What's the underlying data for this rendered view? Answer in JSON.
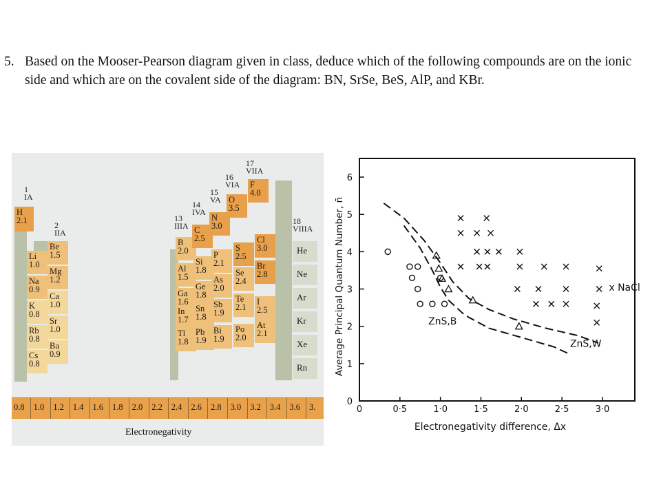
{
  "question": {
    "number": "5.",
    "text": "Based on the Mooser-Pearson diagram given in class, deduce which of the following compounds are on the ionic side and which are on the covalent side of the diagram: BN, SrSe, BeS, AlP, and KBr."
  },
  "periodic_table": {
    "groups": [
      {
        "num": "1",
        "name": "IA"
      },
      {
        "num": "2",
        "name": "IIA"
      },
      {
        "num": "13",
        "name": "IIIA"
      },
      {
        "num": "14",
        "name": "IVA"
      },
      {
        "num": "15",
        "name": "VA"
      },
      {
        "num": "16",
        "name": "VIA"
      },
      {
        "num": "17",
        "name": "VIIA"
      },
      {
        "num": "18",
        "name": "VIIIA"
      }
    ],
    "elements": [
      {
        "sym": "H",
        "en": "2.1"
      },
      {
        "sym": "Li",
        "en": "1.0"
      },
      {
        "sym": "Be",
        "en": "1.5"
      },
      {
        "sym": "Na",
        "en": "0.9"
      },
      {
        "sym": "Mg",
        "en": "1.2"
      },
      {
        "sym": "K",
        "en": "0.8"
      },
      {
        "sym": "Ca",
        "en": "1.0"
      },
      {
        "sym": "Rb",
        "en": "0.8"
      },
      {
        "sym": "Sr",
        "en": "1.0"
      },
      {
        "sym": "Cs",
        "en": "0.8"
      },
      {
        "sym": "Ba",
        "en": "0.9"
      },
      {
        "sym": "B",
        "en": "2.0"
      },
      {
        "sym": "C",
        "en": "2.5"
      },
      {
        "sym": "N",
        "en": "3.0"
      },
      {
        "sym": "O",
        "en": "3.5"
      },
      {
        "sym": "F",
        "en": "4.0"
      },
      {
        "sym": "Al",
        "en": "1.5"
      },
      {
        "sym": "Si",
        "en": "1.8"
      },
      {
        "sym": "P",
        "en": "2.1"
      },
      {
        "sym": "S",
        "en": "2.5"
      },
      {
        "sym": "Cl",
        "en": "3.0"
      },
      {
        "sym": "Ga",
        "en": "1.6"
      },
      {
        "sym": "Ge",
        "en": "1.8"
      },
      {
        "sym": "As",
        "en": "2.0"
      },
      {
        "sym": "Se",
        "en": "2.4"
      },
      {
        "sym": "Br",
        "en": "2.8"
      },
      {
        "sym": "In",
        "en": "1.7"
      },
      {
        "sym": "Sn",
        "en": "1.8"
      },
      {
        "sym": "Sb",
        "en": "1.9"
      },
      {
        "sym": "Te",
        "en": "2.1"
      },
      {
        "sym": "I",
        "en": "2.5"
      },
      {
        "sym": "Tl",
        "en": "1.8"
      },
      {
        "sym": "Pb",
        "en": "1.9"
      },
      {
        "sym": "Bi",
        "en": "1.9"
      },
      {
        "sym": "Po",
        "en": "2.0"
      },
      {
        "sym": "At",
        "en": "2.1"
      }
    ],
    "noble": [
      "He",
      "Ne",
      "Ar",
      "Kr",
      "Xe",
      "Rn"
    ],
    "scale": [
      "0.8",
      "1.0",
      "1.2",
      "1.4",
      "1.6",
      "1.8",
      "2.0",
      "2.2",
      "2.4",
      "2.6",
      "2.8",
      "3.0",
      "3.2",
      "3.4",
      "3.6",
      "3."
    ],
    "scale_label": "Electronegativity"
  },
  "chart_data": {
    "type": "scatter",
    "xlabel": "Electronegativity  difference,  Δx",
    "ylabel": "Average  Principal  Quantum  Number,  n̄",
    "xlim": [
      0,
      3.4
    ],
    "ylim": [
      0,
      6.5
    ],
    "xticks": [
      "0",
      "0·5",
      "1·0",
      "1·5",
      "2·0",
      "2·5",
      "3·0"
    ],
    "xtick_values": [
      0,
      0.5,
      1.0,
      1.5,
      2.0,
      2.5,
      3.0
    ],
    "yticks": [
      "0",
      "1",
      "2",
      "3",
      "4",
      "5",
      "6"
    ],
    "ytick_values": [
      0,
      1,
      2,
      3,
      4,
      5,
      6
    ],
    "series": [
      {
        "marker": "o",
        "points": [
          [
            0.35,
            4.0
          ],
          [
            0.62,
            3.6
          ],
          [
            0.72,
            3.6
          ],
          [
            0.65,
            3.3
          ],
          [
            0.72,
            3.0
          ],
          [
            0.75,
            2.6
          ],
          [
            0.9,
            2.6
          ],
          [
            1.05,
            2.6
          ],
          [
            1.0,
            3.3
          ]
        ]
      },
      {
        "marker": "x",
        "points": [
          [
            1.25,
            4.9
          ],
          [
            1.57,
            4.9
          ],
          [
            1.25,
            4.5
          ],
          [
            1.45,
            4.5
          ],
          [
            1.62,
            4.5
          ],
          [
            1.45,
            4.0
          ],
          [
            1.58,
            4.0
          ],
          [
            1.72,
            4.0
          ],
          [
            1.98,
            4.0
          ],
          [
            1.25,
            3.6
          ],
          [
            1.48,
            3.6
          ],
          [
            1.58,
            3.6
          ],
          [
            1.98,
            3.6
          ],
          [
            2.28,
            3.6
          ],
          [
            2.55,
            3.6
          ],
          [
            2.96,
            3.55
          ],
          [
            1.95,
            3.0
          ],
          [
            2.21,
            3.0
          ],
          [
            2.55,
            3.0
          ],
          [
            2.96,
            3.0
          ],
          [
            2.18,
            2.6
          ],
          [
            2.37,
            2.6
          ],
          [
            2.55,
            2.6
          ],
          [
            2.93,
            2.55
          ],
          [
            2.93,
            2.1
          ]
        ]
      },
      {
        "marker": "triangle",
        "points": [
          [
            0.95,
            3.9
          ],
          [
            0.98,
            3.55
          ],
          [
            1.02,
            3.28
          ],
          [
            1.1,
            3.0
          ],
          [
            1.4,
            2.7
          ],
          [
            1.97,
            2.0
          ]
        ]
      }
    ],
    "curves": [
      {
        "style": "dashed",
        "points": [
          [
            0.3,
            5.3
          ],
          [
            0.55,
            4.9
          ],
          [
            0.8,
            4.3
          ],
          [
            1.0,
            3.7
          ],
          [
            1.15,
            3.2
          ],
          [
            1.35,
            2.75
          ],
          [
            1.6,
            2.45
          ],
          [
            1.9,
            2.2
          ],
          [
            2.3,
            1.95
          ],
          [
            2.7,
            1.75
          ],
          [
            2.95,
            1.55
          ]
        ]
      },
      {
        "style": "dashed",
        "points": [
          [
            0.55,
            4.7
          ],
          [
            0.75,
            4.1
          ],
          [
            0.9,
            3.5
          ],
          [
            1.0,
            3.05
          ],
          [
            1.1,
            2.7
          ],
          [
            1.3,
            2.3
          ],
          [
            1.6,
            1.95
          ],
          [
            2.0,
            1.7
          ],
          [
            2.4,
            1.45
          ],
          [
            2.6,
            1.25
          ]
        ]
      }
    ],
    "annotations": [
      {
        "text": "ZnS,B",
        "x": 0.85,
        "y": 2.05
      },
      {
        "text": "ZnS,W",
        "x": 2.6,
        "y": 1.45
      },
      {
        "text": "x  NaCl",
        "x": 3.08,
        "y": 2.95
      }
    ]
  }
}
